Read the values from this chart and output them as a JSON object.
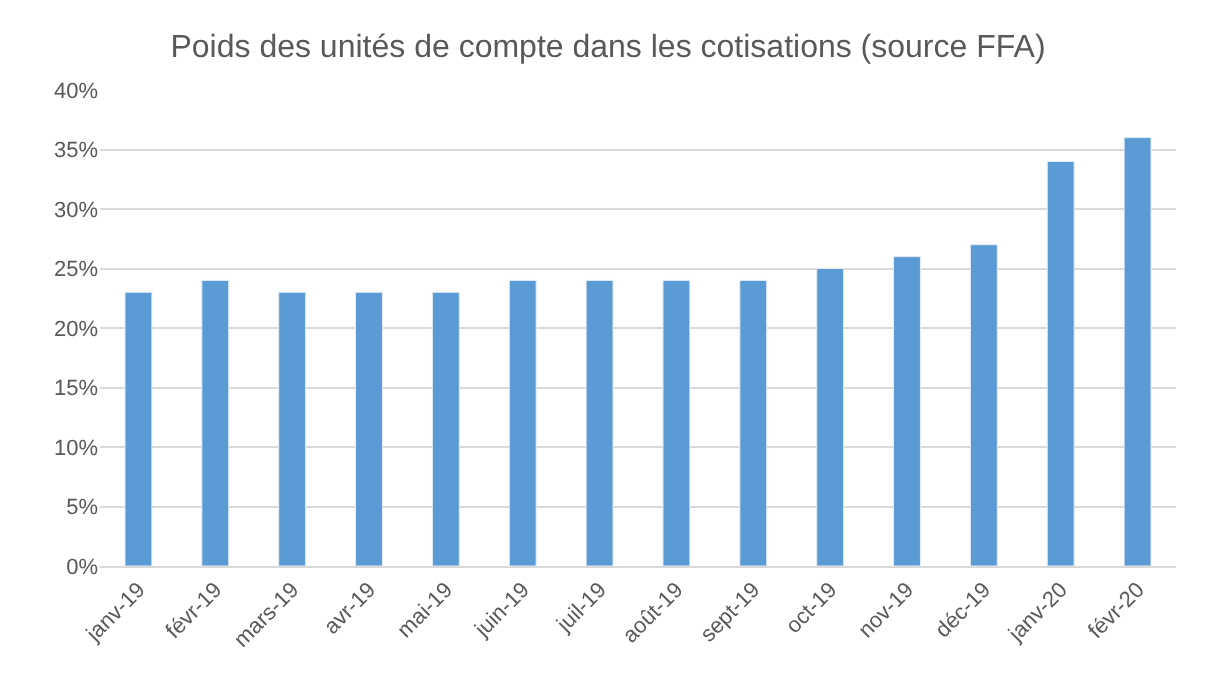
{
  "chart_data": {
    "type": "bar",
    "title": "Poids des unités de compte dans les cotisations (source FFA)",
    "categories": [
      "janv-19",
      "févr-19",
      "mars-19",
      "avr-19",
      "mai-19",
      "juin-19",
      "juil-19",
      "août-19",
      "sept-19",
      "oct-19",
      "nov-19",
      "déc-19",
      "janv-20",
      "févr-20"
    ],
    "values": [
      23,
      24,
      23,
      23,
      23,
      24,
      24,
      24,
      24,
      25,
      26,
      27,
      34,
      36
    ],
    "color": "#5b9bd5",
    "ylim": [
      0,
      40
    ],
    "yticks": [
      {
        "value": 0,
        "label": "0%"
      },
      {
        "value": 5,
        "label": "5%"
      },
      {
        "value": 10,
        "label": "10%"
      },
      {
        "value": 15,
        "label": "15%"
      },
      {
        "value": 20,
        "label": "20%"
      },
      {
        "value": 25,
        "label": "25%"
      },
      {
        "value": 30,
        "label": "30%"
      },
      {
        "value": 35,
        "label": "35%"
      },
      {
        "value": 40,
        "label": "40%"
      }
    ],
    "grid": "y"
  }
}
